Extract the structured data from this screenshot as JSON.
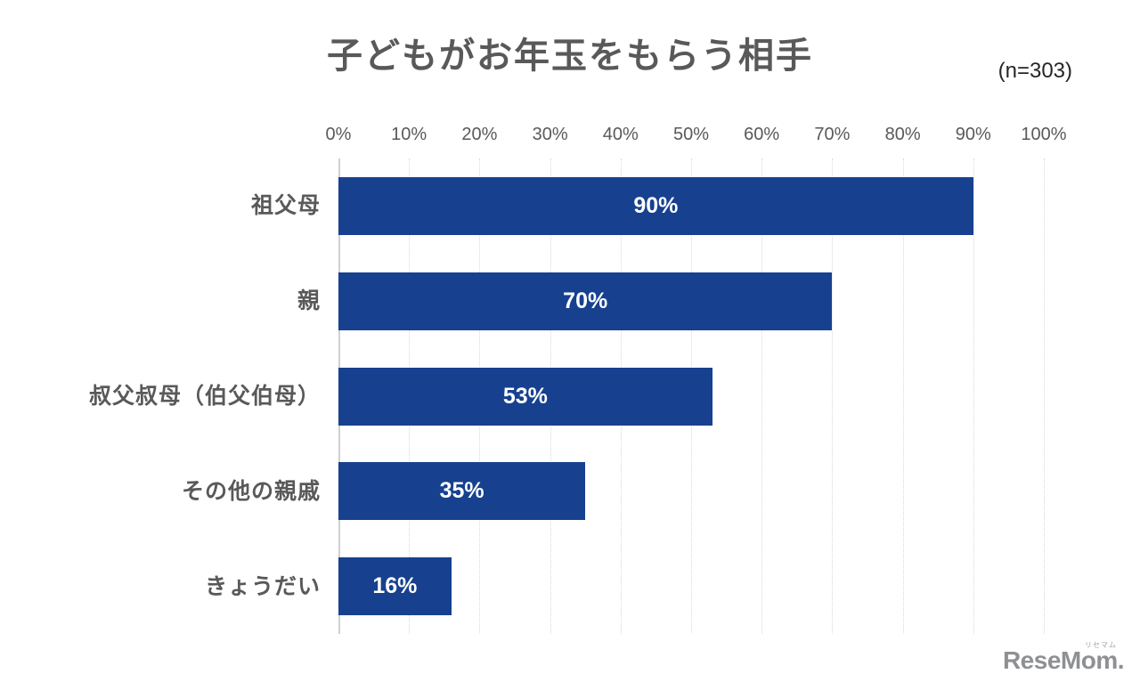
{
  "header": {
    "title": "子どもがお年玉をもらう相手",
    "sample_size": "(n=303)"
  },
  "chart_data": {
    "type": "bar",
    "orientation": "horizontal",
    "title": "子どもがお年玉をもらう相手",
    "sample_size_note": "(n=303)",
    "categories": [
      "祖父母",
      "親",
      "叔父叔母（伯父伯母）",
      "その他の親戚",
      "きょうだい"
    ],
    "values": [
      90,
      70,
      53,
      35,
      16
    ],
    "value_labels": [
      "90%",
      "70%",
      "53%",
      "35%",
      "16%"
    ],
    "x_ticks": [
      "0%",
      "10%",
      "20%",
      "30%",
      "40%",
      "50%",
      "60%",
      "70%",
      "80%",
      "90%",
      "100%"
    ],
    "xlim": [
      0,
      100
    ],
    "grid": "vertical-dotted",
    "legend": "none",
    "colors": {
      "bar": "#17418F",
      "data_label": "#FFFFFF",
      "axis_text": "#595959",
      "title_text": "#595959",
      "gridline": "#D9D9D9"
    }
  },
  "footer": {
    "logo_text": "ReseMom",
    "logo_dot": ".",
    "logo_ruby": "リセマム"
  }
}
